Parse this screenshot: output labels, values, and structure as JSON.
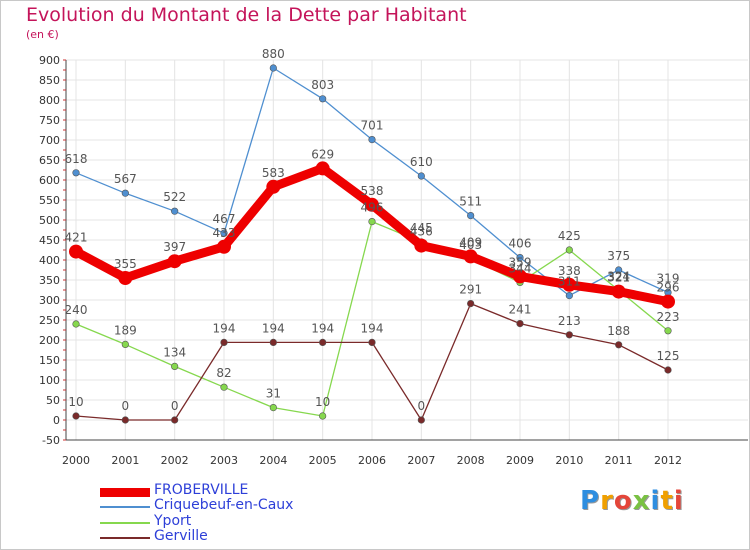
{
  "title": "Evolution du Montant de la Dette par Habitant",
  "unit": "(en €)",
  "logo": "Proxiti",
  "chart_data": {
    "type": "line",
    "title": "Evolution du Montant de la Dette par Habitant",
    "ylabel": "(en €)",
    "xlabel": "",
    "ylim": [
      -50,
      900
    ],
    "yticks": [
      -50,
      0,
      50,
      100,
      150,
      200,
      250,
      300,
      350,
      400,
      450,
      500,
      550,
      600,
      650,
      700,
      750,
      800,
      850,
      900
    ],
    "categories": [
      "2000",
      "2001",
      "2002",
      "2003",
      "2004",
      "2005",
      "2006",
      "2007",
      "2008",
      "2009",
      "2010",
      "2011",
      "2012"
    ],
    "grid": true,
    "legend": "bottom-left",
    "series": [
      {
        "name": "FROBERVILLE",
        "color": "#ee0000",
        "values": [
          421,
          355,
          397,
          433,
          583,
          629,
          538,
          436,
          409,
          359,
          338,
          321,
          296
        ]
      },
      {
        "name": "Criquebeuf-en-Caux",
        "color": "#4f8fd0",
        "values": [
          618,
          567,
          522,
          467,
          880,
          803,
          701,
          610,
          511,
          406,
          311,
          375,
          319
        ]
      },
      {
        "name": "Yport",
        "color": "#86d84e",
        "values": [
          240,
          189,
          134,
          82,
          31,
          10,
          496,
          445,
          403,
          344,
          425,
          324,
          223
        ]
      },
      {
        "name": "Gerville",
        "color": "#7a2a2a",
        "values": [
          10,
          0,
          0,
          194,
          194,
          194,
          194,
          0,
          291,
          241,
          213,
          188,
          125
        ]
      }
    ]
  }
}
